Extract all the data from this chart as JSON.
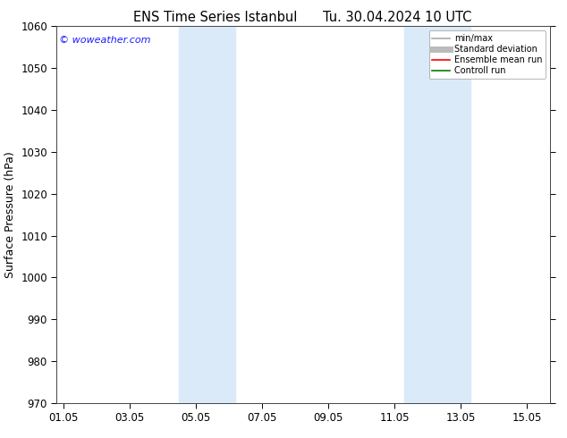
{
  "title": "ENS Time Series Istanbul",
  "title2": "Tu. 30.04.2024 10 UTC",
  "ylabel": "Surface Pressure (hPa)",
  "ylim": [
    970,
    1060
  ],
  "yticks": [
    970,
    980,
    990,
    1000,
    1010,
    1020,
    1030,
    1040,
    1050,
    1060
  ],
  "xtick_labels": [
    "01.05",
    "03.05",
    "05.05",
    "07.05",
    "09.05",
    "11.05",
    "13.05",
    "15.05"
  ],
  "xtick_day_offsets": [
    0,
    2,
    4,
    6,
    8,
    10,
    12,
    14
  ],
  "shaded_bands": [
    {
      "x_start_day": 3.5,
      "x_end_day": 5.2,
      "color": "#daeaf8"
    },
    {
      "x_start_day": 10.3,
      "x_end_day": 12.3,
      "color": "#daeaf8"
    }
  ],
  "watermark": "© woweather.com",
  "watermark_color": "#1a1aff",
  "legend_items": [
    {
      "label": "min/max",
      "color": "#aaaaaa",
      "lw": 1.2
    },
    {
      "label": "Standard deviation",
      "color": "#bbbbbb",
      "lw": 5
    },
    {
      "label": "Ensemble mean run",
      "color": "#ff0000",
      "lw": 1.2
    },
    {
      "label": "Controll run",
      "color": "#008000",
      "lw": 1.2
    }
  ],
  "background_color": "#ffffff",
  "spine_color": "#444444",
  "tick_label_fontsize": 8.5,
  "axis_label_fontsize": 9,
  "title_fontsize": 10.5,
  "xlim_day_offsets": [
    -0.2,
    14.7
  ]
}
